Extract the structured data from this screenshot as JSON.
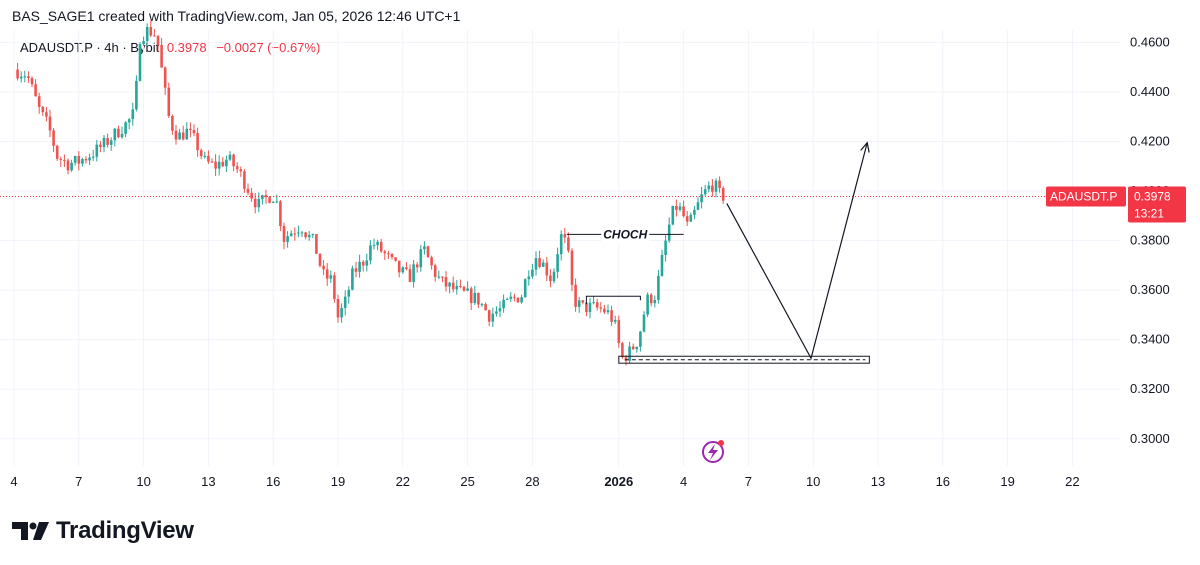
{
  "header": {
    "attribution": "BAS_SAGE1 created with TradingView.com, Jan 05, 2026 12:46 UTC+1"
  },
  "legend": {
    "symbol": "ADAUSDT.P · 4h · Bybit",
    "price": "0.3978",
    "change": "−0.0027 (−0.67%)"
  },
  "price_label": {
    "symbol": "ADAUSDT.P",
    "price": "0.3978",
    "countdown": "13:21"
  },
  "annotations": {
    "choch": "CHOCH"
  },
  "footer": {
    "brand": "TradingView"
  },
  "colors": {
    "up": "#26a69a",
    "down": "#ef5350",
    "price_line": "#f23645",
    "grid": "#f0f3fa",
    "axis_text": "#131722",
    "brand_icon_color": "#9c27b0"
  },
  "chart_data": {
    "type": "candlestick",
    "title": "ADAUSDT.P · 4h · Bybit",
    "last_price": 0.3978,
    "ylim": [
      0.289,
      0.465
    ],
    "y_ticks": [
      "0.4600",
      "0.4400",
      "0.4200",
      "0.4000",
      "0.3800",
      "0.3600",
      "0.3400",
      "0.3200",
      "0.3000"
    ],
    "x_ticks": [
      {
        "label": "4",
        "day": 4
      },
      {
        "label": "7",
        "day": 7
      },
      {
        "label": "10",
        "day": 10
      },
      {
        "label": "13",
        "day": 13
      },
      {
        "label": "16",
        "day": 16
      },
      {
        "label": "19",
        "day": 19
      },
      {
        "label": "22",
        "day": 22
      },
      {
        "label": "25",
        "day": 25
      },
      {
        "label": "28",
        "day": 28
      },
      {
        "label": "2026",
        "day": 32,
        "bold": true
      },
      {
        "label": "4",
        "day": 35
      },
      {
        "label": "7",
        "day": 38
      },
      {
        "label": "10",
        "day": 41
      },
      {
        "label": "13",
        "day": 44
      },
      {
        "label": "16",
        "day": 47
      },
      {
        "label": "19",
        "day": 50
      },
      {
        "label": "22",
        "day": 53
      }
    ],
    "close_path": [
      [
        4.0,
        0.449
      ],
      [
        4.6,
        0.447
      ],
      [
        5.2,
        0.432
      ],
      [
        5.6,
        0.426
      ],
      [
        6.0,
        0.414
      ],
      [
        6.5,
        0.411
      ],
      [
        7.0,
        0.412
      ],
      [
        7.6,
        0.415
      ],
      [
        8.2,
        0.419
      ],
      [
        8.8,
        0.424
      ],
      [
        9.3,
        0.428
      ],
      [
        9.6,
        0.432
      ],
      [
        9.8,
        0.462
      ],
      [
        10.2,
        0.465
      ],
      [
        10.6,
        0.463
      ],
      [
        10.9,
        0.445
      ],
      [
        11.2,
        0.428
      ],
      [
        11.6,
        0.422
      ],
      [
        12.0,
        0.424
      ],
      [
        12.4,
        0.42
      ],
      [
        12.8,
        0.412
      ],
      [
        13.3,
        0.41
      ],
      [
        13.9,
        0.413
      ],
      [
        14.4,
        0.408
      ],
      [
        14.9,
        0.4
      ],
      [
        15.3,
        0.394
      ],
      [
        15.8,
        0.398
      ],
      [
        16.1,
        0.398
      ],
      [
        16.5,
        0.381
      ],
      [
        16.9,
        0.384
      ],
      [
        17.3,
        0.386
      ],
      [
        17.6,
        0.382
      ],
      [
        17.9,
        0.379
      ],
      [
        18.3,
        0.366
      ],
      [
        18.7,
        0.364
      ],
      [
        19.0,
        0.349
      ],
      [
        19.3,
        0.354
      ],
      [
        19.7,
        0.367
      ],
      [
        20.2,
        0.372
      ],
      [
        20.6,
        0.379
      ],
      [
        21.0,
        0.376
      ],
      [
        21.4,
        0.372
      ],
      [
        21.8,
        0.368
      ],
      [
        22.3,
        0.365
      ],
      [
        22.7,
        0.372
      ],
      [
        23.0,
        0.376
      ],
      [
        23.4,
        0.368
      ],
      [
        23.8,
        0.363
      ],
      [
        24.2,
        0.361
      ],
      [
        24.6,
        0.359
      ],
      [
        25.0,
        0.358
      ],
      [
        25.5,
        0.356
      ],
      [
        26.0,
        0.35
      ],
      [
        26.5,
        0.352
      ],
      [
        27.0,
        0.356
      ],
      [
        27.5,
        0.358
      ],
      [
        27.8,
        0.368
      ],
      [
        28.2,
        0.374
      ],
      [
        28.6,
        0.369
      ],
      [
        28.9,
        0.364
      ],
      [
        29.3,
        0.382
      ],
      [
        29.6,
        0.378
      ],
      [
        29.9,
        0.356
      ],
      [
        30.3,
        0.353
      ],
      [
        30.8,
        0.353
      ],
      [
        31.3,
        0.352
      ],
      [
        31.6,
        0.35
      ],
      [
        31.9,
        0.344
      ],
      [
        32.1,
        0.332
      ],
      [
        32.5,
        0.335
      ],
      [
        32.9,
        0.34
      ],
      [
        33.3,
        0.356
      ],
      [
        33.7,
        0.358
      ],
      [
        34.0,
        0.372
      ],
      [
        34.3,
        0.385
      ],
      [
        34.6,
        0.394
      ],
      [
        34.9,
        0.392
      ],
      [
        35.2,
        0.385
      ],
      [
        35.5,
        0.391
      ],
      [
        35.8,
        0.397
      ],
      [
        36.1,
        0.401
      ],
      [
        36.4,
        0.403
      ],
      [
        36.7,
        0.398
      ],
      [
        36.95,
        0.3978
      ]
    ],
    "current_price_line": 0.3978,
    "drawings": {
      "choch_level": {
        "from_day": 29.6,
        "to_day": 35.0,
        "price": 0.3825
      },
      "lower_box_level": {
        "from_day": 30.5,
        "to_day": 33.0,
        "price": 0.3575
      },
      "demand_zone": {
        "from_day": 32.0,
        "to_day": 43.6,
        "top": 0.3333,
        "bottom": 0.3305
      },
      "projection_path": [
        [
          37.0,
          0.395
        ],
        [
          40.9,
          0.3325
        ],
        [
          43.5,
          0.4195
        ]
      ]
    }
  }
}
